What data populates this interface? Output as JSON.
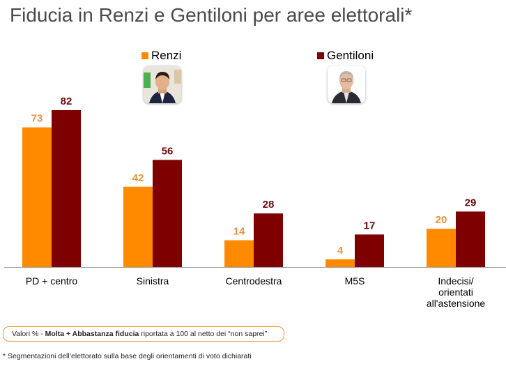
{
  "page": {
    "title": "Fiducia in Renzi e Gentiloni per aree elettorali*",
    "note_prefix": "Valori % - ",
    "note_bold": "Molta + Abbastanza fiducia",
    "note_suffix": " riportata a 100 al netto dei “non saprei”",
    "footnote": "* Segmentazioni dell’elettorato sulla base degli orientamenti di voto dichiarati"
  },
  "colors": {
    "renzi": "#ff8a00",
    "gentiloni": "#7e0000",
    "renzi_label": "#e8923a",
    "gentiloni_label": "#6b0a0a",
    "baseline": "#999999"
  },
  "chart_data": {
    "type": "bar",
    "categories": [
      "PD + centro",
      "Sinistra",
      "Centrodestra",
      "M5S",
      "Indecisi/ orientati all'astensione"
    ],
    "category_lines": [
      [
        "PD + centro"
      ],
      [
        "Sinistra"
      ],
      [
        "Centrodestra"
      ],
      [
        "M5S"
      ],
      [
        "Indecisi/",
        "orientati",
        "all'astensione"
      ]
    ],
    "series": [
      {
        "name": "Renzi",
        "values": [
          73,
          42,
          14,
          4,
          20
        ]
      },
      {
        "name": "Gentiloni",
        "values": [
          82,
          56,
          28,
          17,
          29
        ]
      }
    ],
    "title": "Fiducia in Renzi e Gentiloni per aree elettorali*",
    "xlabel": "",
    "ylabel": "",
    "ylim": [
      0,
      82
    ],
    "grid": false,
    "legend": "top"
  }
}
